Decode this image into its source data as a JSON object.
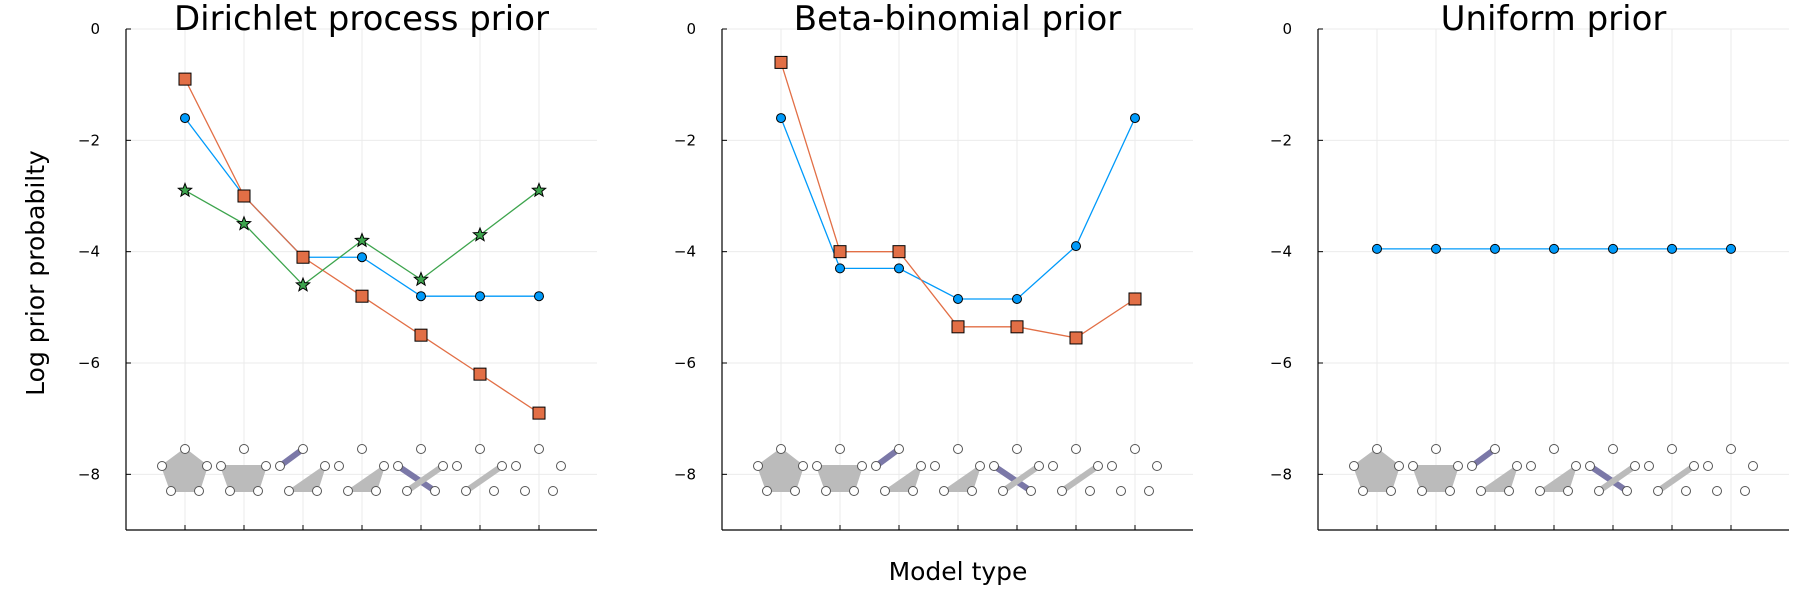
{
  "figure": {
    "xlabel": "Model type",
    "ylabel": "Log prior probabilty"
  },
  "colors": {
    "blue": "#009AFA",
    "orange": "#E26F46",
    "green": "#3DA44D",
    "glyph_fill": "#BBBBBB",
    "glyph_link": "#7B78A8",
    "grid": "#EBEBEB"
  },
  "chart_data": [
    {
      "type": "line",
      "title": "Dirichlet process prior",
      "x": [
        1,
        2,
        3,
        4,
        5,
        6,
        7
      ],
      "ylim": [
        -9,
        0
      ],
      "yticks": [
        0,
        -2,
        -4,
        -6,
        -8
      ],
      "grid": true,
      "series": [
        {
          "marker": "circle",
          "color": "#009AFA",
          "values": [
            -1.6,
            -3.0,
            -4.1,
            -4.1,
            -4.8,
            -4.8,
            -4.8
          ]
        },
        {
          "marker": "square",
          "color": "#E26F46",
          "values": [
            -0.9,
            -3.0,
            -4.1,
            -4.8,
            -5.5,
            -6.2,
            -6.9
          ]
        },
        {
          "marker": "star",
          "color": "#3DA44D",
          "values": [
            -2.9,
            -3.5,
            -4.6,
            -3.8,
            -4.5,
            -3.7,
            -2.9
          ]
        }
      ]
    },
    {
      "type": "line",
      "title": "Beta-binomial prior",
      "x": [
        1,
        2,
        3,
        4,
        5,
        6,
        7
      ],
      "ylim": [
        -9,
        0
      ],
      "yticks": [
        0,
        -2,
        -4,
        -6,
        -8
      ],
      "grid": true,
      "series": [
        {
          "marker": "circle",
          "color": "#009AFA",
          "values": [
            -1.6,
            -4.3,
            -4.3,
            -4.85,
            -4.85,
            -3.9,
            -1.6
          ]
        },
        {
          "marker": "square",
          "color": "#E26F46",
          "values": [
            -0.6,
            -4.0,
            -4.0,
            -5.35,
            -5.35,
            -5.55,
            -4.85
          ]
        }
      ]
    },
    {
      "type": "line",
      "title": "Uniform prior",
      "x": [
        1,
        2,
        3,
        4,
        5,
        6,
        7
      ],
      "ylim": [
        -9,
        0
      ],
      "yticks": [
        0,
        -2,
        -4,
        -6,
        -8
      ],
      "grid": true,
      "series": [
        {
          "marker": "circle",
          "color": "#009AFA",
          "values": [
            -3.95,
            -3.95,
            -3.95,
            -3.95,
            -3.95,
            -3.95,
            -3.95
          ]
        }
      ]
    }
  ]
}
